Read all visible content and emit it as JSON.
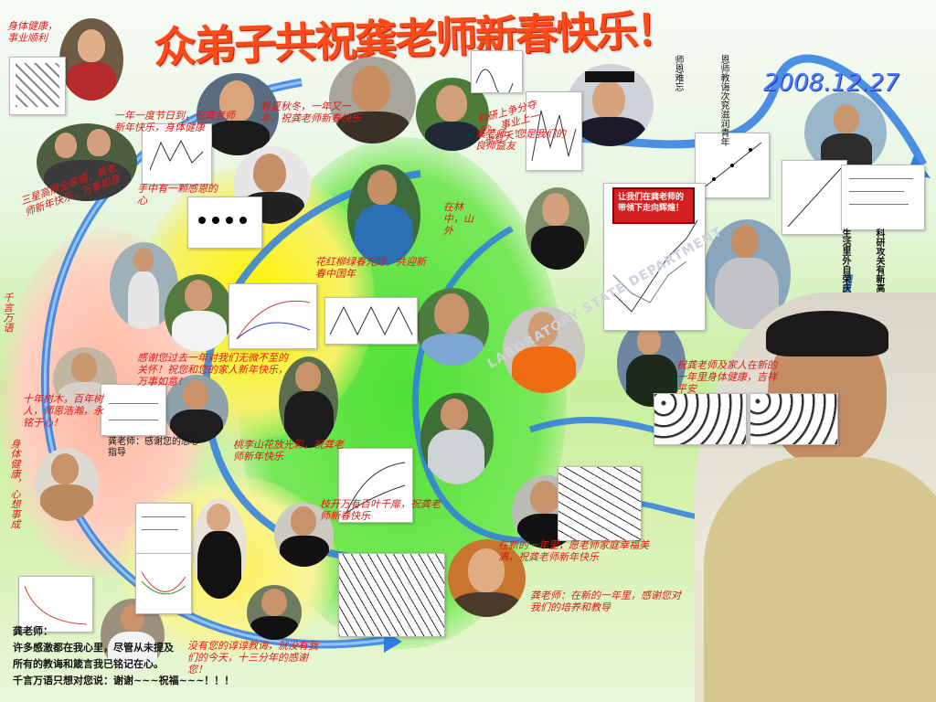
{
  "title": "众弟子共祝龚老师新春快乐！",
  "date": "2008.12.27",
  "banner": "让我们在龚老师的带领下走向辉煌！",
  "lab_sign": "LABORATORY STATE DEPARTMENT",
  "greetings": {
    "gratitude": "感谢您过去一年对我们无微不至的关怀！祝您和您的家人新年快乐，万事如意！",
    "teacher_family": "祝龚老师及家人在新的一年里身体健康，吉祥平安",
    "research": "科研上争分夺秒，事业上一步登天！",
    "hometown": "身体健康，事业顺利",
    "long_left": "三星高照全家福，龚老师新年快乐，万事如意",
    "year_wishes": "一年一度节日到，祝龚老师新年快乐，身体健康",
    "heart": "手中有一颗感恩的心",
    "spring": "花红柳绿春光好，共迎新春中国年",
    "mountain": "在林中，山外",
    "peach": "桃李山花放光彩，祝龚老师新年快乐",
    "spring_crop": "枝开万有百叶千扉，祝龚老师新春快乐",
    "seasons": "春夏秋冬，一年又一年，祝龚老师新春快乐",
    "red_bottom": "在新的一年里，愿老师家庭幸福美满，祝龚老师新年快乐",
    "teacher_words": "龚老师：在新的一年里，感谢您对我们的培养和教导",
    "bottom_center": "没有您的谆谆教诲，就没有我们的今天，十三分年的感谢您！",
    "vertical_left": "千言万语",
    "hundred_trees": "十年树木，百年树人，师恩浩瀚，永铭于心！",
    "health": "身体健康，心想事成",
    "wishes_center": "龚老师，您是我们的良师益友"
  },
  "notes": {
    "research_vertical": "科研攻关有新高",
    "life_vertical": "生活里外自荣庆",
    "teacher_vertical": "恩师教诲次兖滋润青年",
    "grace_vertical": "师恩难忘",
    "thanks_note": "龚老师：感谢您的悉心指导"
  },
  "closing": {
    "salutation": "龚老师：",
    "line1": "许多感激都在我心里，尽管从未提及",
    "line2": "所有的教诲和箴言我已铭记在心。",
    "line3": "千言万语只想对您说：谢谢~~~祝福~~~！！！"
  },
  "colors": {
    "title": "#ff4a1a",
    "date": "#4e7cff",
    "swirl": "#2f7de0",
    "greeting": "#e01818",
    "banner": "#d42020"
  }
}
